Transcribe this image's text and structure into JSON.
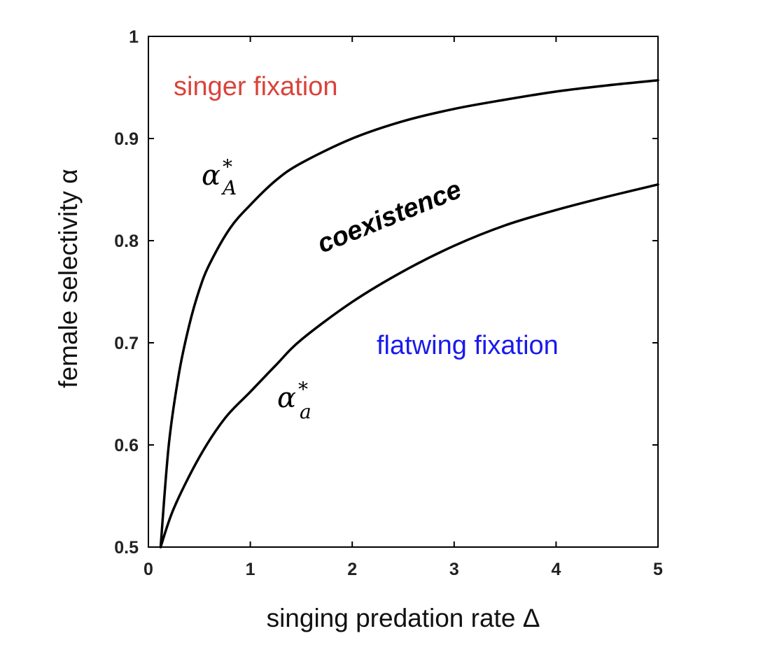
{
  "chart_data": {
    "type": "line",
    "xlabel": "singing predation rate Δ",
    "ylabel": "female selectivity α",
    "xlim": [
      0,
      5
    ],
    "ylim": [
      0.5,
      1
    ],
    "xticks": [
      "0",
      "1",
      "2",
      "3",
      "4",
      "5"
    ],
    "yticks": [
      "0.5",
      "0.6",
      "0.7",
      "0.8",
      "0.9",
      "1"
    ],
    "grid": false,
    "series": [
      {
        "name": "α*_A",
        "x": [
          0.12,
          0.2,
          0.3,
          0.4,
          0.5,
          0.6,
          0.8,
          1.0,
          1.25,
          1.5,
          2.0,
          2.5,
          3.0,
          3.5,
          4.0,
          4.5,
          5.0
        ],
        "values": [
          0.5,
          0.6,
          0.67,
          0.717,
          0.752,
          0.777,
          0.812,
          0.835,
          0.859,
          0.876,
          0.9,
          0.917,
          0.929,
          0.938,
          0.946,
          0.952,
          0.957
        ]
      },
      {
        "name": "α*_a",
        "x": [
          0.12,
          0.25,
          0.5,
          0.75,
          1.0,
          1.25,
          1.5,
          2.0,
          2.5,
          3.0,
          3.5,
          4.0,
          4.5,
          5.0
        ],
        "values": [
          0.5,
          0.538,
          0.588,
          0.626,
          0.652,
          0.678,
          0.703,
          0.74,
          0.77,
          0.795,
          0.815,
          0.83,
          0.843,
          0.855
        ]
      }
    ],
    "annotations": {
      "singer": "singer fixation",
      "coexistence": "coexistence",
      "flatwing": "flatwing fixation",
      "curve_upper_symbol": "α",
      "curve_upper_sup": "*",
      "curve_upper_sub": "A",
      "curve_lower_symbol": "α",
      "curve_lower_sup": "*",
      "curve_lower_sub": "a"
    },
    "colors": {
      "singer": "#d9433a",
      "flatwing": "#1a1aee",
      "curves": "#000000"
    }
  }
}
